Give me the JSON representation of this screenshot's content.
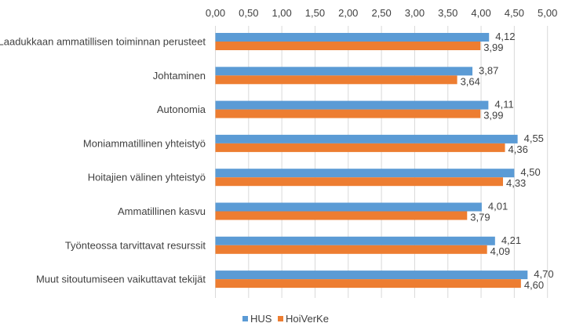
{
  "chart_data": {
    "type": "bar",
    "orientation": "horizontal",
    "categories": [
      "Laadukkaan ammatillisen toiminnan perusteet",
      "Johtaminen",
      "Autonomia",
      "Moniammatillinen yhteistyö",
      "Hoitajien välinen yhteistyö",
      "Ammatillinen kasvu",
      "Työnteossa tarvittavat resurssit",
      "Muut sitoutumiseen vaikuttavat tekijät"
    ],
    "series": [
      {
        "name": "HUS",
        "color": "#5B9BD5",
        "values": [
          4.12,
          3.87,
          4.11,
          4.55,
          4.5,
          4.01,
          4.21,
          4.7
        ],
        "labels": [
          "4,12",
          "3,87",
          "4,11",
          "4,55",
          "4,50",
          "4,01",
          "4,21",
          "4,70"
        ]
      },
      {
        "name": "HoiVerKe",
        "color": "#ED7D31",
        "values": [
          3.99,
          3.64,
          3.99,
          4.36,
          4.33,
          3.79,
          4.09,
          4.6
        ],
        "labels": [
          "3,99",
          "3,64",
          "3,99",
          "4,36",
          "4,33",
          "3,79",
          "4,09",
          "4,60"
        ]
      }
    ],
    "xlim": [
      0,
      5
    ],
    "xticks": [
      "0,00",
      "0,50",
      "1,00",
      "1,50",
      "2,00",
      "2,50",
      "3,00",
      "3,50",
      "4,00",
      "4,50",
      "5,00"
    ],
    "x_axis_position": "top",
    "grid": true,
    "legend": "bottom",
    "title": "",
    "xlabel": "",
    "ylabel": ""
  }
}
